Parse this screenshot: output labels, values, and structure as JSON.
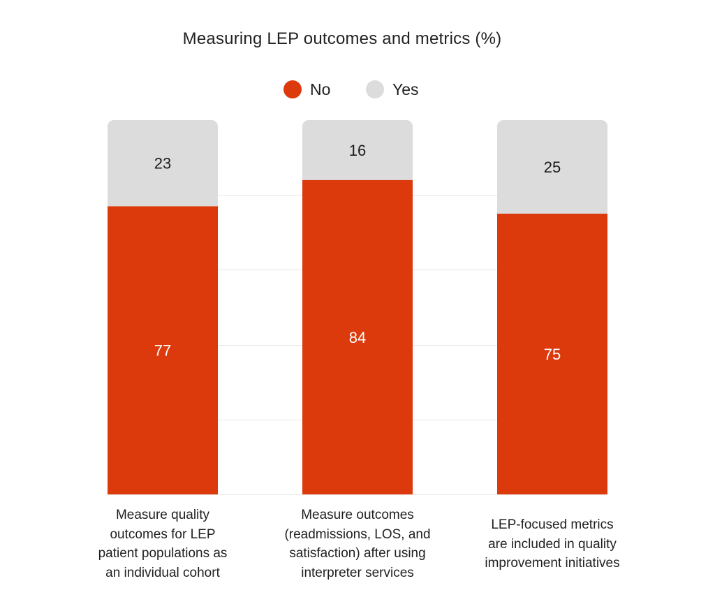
{
  "chart_data": {
    "type": "bar",
    "stacked": true,
    "title": "Measuring LEP outcomes and metrics (%)",
    "categories": [
      "Measure quality outcomes for LEP patient populations as an individual cohort",
      "Measure outcomes (readmissions, LOS, and satisfaction) after using interpreter services",
      "LEP-focused metrics are included in quality improvement initiatives"
    ],
    "category_lines": [
      [
        "Measure quality",
        "outcomes for LEP",
        "patient populations as",
        "an individual cohort"
      ],
      [
        "Measure outcomes",
        "(readmissions, LOS, and",
        "satisfaction) after using",
        "interpreter services"
      ],
      [
        "LEP-focused metrics",
        "are included in quality",
        "improvement initiatives"
      ]
    ],
    "series": [
      {
        "name": "No",
        "values": [
          77,
          84,
          75
        ],
        "color": "#dc3a0c"
      },
      {
        "name": "Yes",
        "values": [
          23,
          16,
          25
        ],
        "color": "#dcdcdc"
      }
    ],
    "ylim": [
      0,
      100
    ],
    "grid": true,
    "legend_position": "top-center",
    "xlabel": "",
    "ylabel": ""
  }
}
